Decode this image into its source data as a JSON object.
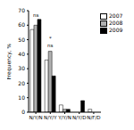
{
  "chart_data": {
    "type": "bar",
    "y_label": "Frequency, %",
    "categories": [
      "N/Y/N",
      "N/Y/Y",
      "Y/Y/N",
      "N/Y/D",
      "N/F/D"
    ],
    "series": [
      {
        "name": "2007",
        "color": "#ffffff",
        "values": [
          57,
          36,
          5,
          0,
          2
        ]
      },
      {
        "name": "2008",
        "color": "#b0b0b0",
        "values": [
          60,
          42,
          2,
          0,
          0
        ]
      },
      {
        "name": "2009",
        "color": "#000000",
        "values": [
          64,
          25,
          2,
          8,
          0
        ]
      }
    ],
    "ylim": [
      0,
      70
    ],
    "yticks": [
      0,
      10,
      20,
      30,
      40,
      50,
      60,
      70
    ],
    "legend": "upper right",
    "annotations": [
      {
        "text": "ns",
        "category": "N/Y/N",
        "y": 67
      },
      {
        "text": "ns",
        "category": "N/Y/Y",
        "y": 46
      },
      {
        "text": "*",
        "category": "N/Y/Y",
        "y": 51
      }
    ]
  }
}
